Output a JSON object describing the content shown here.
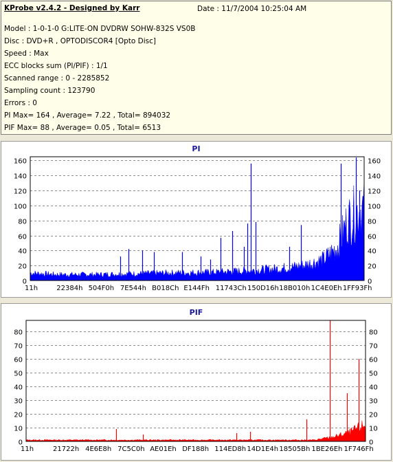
{
  "info": {
    "title": "KProbe v2.4.2 - Designed by Karr",
    "date": "Date : 11/7/2004 10:25:04 AM",
    "lines": [
      "Model : 1-0-1-0 G:LITE-ON DVDRW SOHW-832S  VS0B",
      "Disc : DVD+R , OPTODISCOR4 [Opto Disc]",
      "Speed : Max",
      "ECC blocks sum (PI/PIF) : 1/1",
      "Scanned range : 0 - 2285852",
      "Sampling count : 123790",
      "Errors : 0",
      "PI Max= 164 , Average= 7.22 , Total= 894032",
      "PIF Max= 88 , Average= 0.05 , Total= 6513"
    ]
  },
  "chart_data": [
    {
      "type": "area",
      "title": "PI",
      "color": "#0000ff",
      "ylim": [
        0,
        165
      ],
      "yticks": [
        0,
        20,
        40,
        60,
        80,
        100,
        120,
        140,
        160
      ],
      "xticks": [
        "11h",
        "22384h",
        "504F0h",
        "7E544h",
        "B018Ch",
        "E144Fh",
        "11743Ch",
        "150D16h",
        "18B010h",
        "1C4E0Eh",
        "1FF93Fh"
      ],
      "grid": true,
      "baseline": {
        "x": [
          0,
          8,
          20,
          40,
          55,
          65,
          75,
          82,
          88,
          92,
          95,
          97,
          99,
          100
        ],
        "y": [
          10,
          8,
          8,
          10,
          11,
          13,
          16,
          20,
          28,
          45,
          78,
          88,
          95,
          95
        ]
      },
      "spikes": [
        {
          "x": 27.0,
          "y": 32
        },
        {
          "x": 29.5,
          "y": 42
        },
        {
          "x": 33.5,
          "y": 40
        },
        {
          "x": 37.0,
          "y": 38
        },
        {
          "x": 45.5,
          "y": 38
        },
        {
          "x": 51.0,
          "y": 32
        },
        {
          "x": 54.0,
          "y": 28
        },
        {
          "x": 57.0,
          "y": 57
        },
        {
          "x": 60.5,
          "y": 66
        },
        {
          "x": 64.0,
          "y": 45
        },
        {
          "x": 65.0,
          "y": 76
        },
        {
          "x": 66.0,
          "y": 156
        },
        {
          "x": 67.5,
          "y": 78
        },
        {
          "x": 77.5,
          "y": 45
        },
        {
          "x": 81.0,
          "y": 74
        },
        {
          "x": 93.0,
          "y": 156
        },
        {
          "x": 97.5,
          "y": 164
        },
        {
          "x": 98.5,
          "y": 120
        }
      ]
    },
    {
      "type": "area",
      "title": "PIF",
      "color": "#ff0000",
      "ylim": [
        0,
        88
      ],
      "yticks": [
        0,
        10,
        20,
        30,
        40,
        50,
        60,
        70,
        80
      ],
      "xticks": [
        "11h",
        "21722h",
        "4E6E8h",
        "7C5C0h",
        "AE01Eh",
        "DF188h",
        "114ED8h",
        "14D1E4h",
        "18505Bh",
        "1BE26Eh",
        "1F746Fh"
      ],
      "grid": true,
      "baseline": {
        "x": [
          0,
          85,
          90,
          95,
          100
        ],
        "y": [
          1,
          1,
          3,
          6,
          12
        ]
      },
      "spikes": [
        {
          "x": 26.5,
          "y": 9
        },
        {
          "x": 34.5,
          "y": 5
        },
        {
          "x": 62.0,
          "y": 6
        },
        {
          "x": 66.0,
          "y": 7
        },
        {
          "x": 82.5,
          "y": 16
        },
        {
          "x": 89.5,
          "y": 88
        },
        {
          "x": 94.5,
          "y": 35
        },
        {
          "x": 98.0,
          "y": 60
        }
      ]
    }
  ]
}
